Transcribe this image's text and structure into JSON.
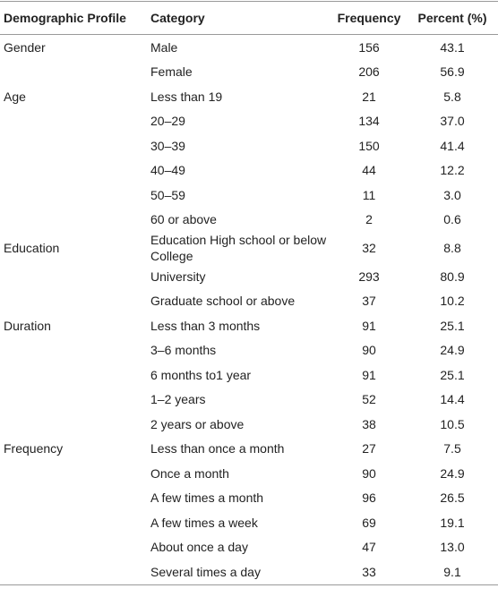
{
  "table": {
    "header": [
      "Demographic Profile",
      "Category",
      "Frequency",
      "Percent (%)"
    ],
    "groups": [
      {
        "profile": "Gender",
        "rows": [
          [
            "Male",
            "156",
            "43.1"
          ],
          [
            "Female",
            "206",
            "56.9"
          ]
        ]
      },
      {
        "profile": "Age",
        "rows": [
          [
            "Less than 19",
            "21",
            "5.8"
          ],
          [
            "20–29",
            "134",
            "37.0"
          ],
          [
            "30–39",
            "150",
            "41.4"
          ],
          [
            "40–49",
            "44",
            "12.2"
          ],
          [
            "50–59",
            "11",
            "3.0"
          ],
          [
            "60 or above",
            "2",
            "0.6"
          ]
        ]
      },
      {
        "profile": "Education",
        "rows": [
          [
            "Education High school or below College",
            "32",
            "8.8"
          ],
          [
            "University",
            "293",
            "80.9"
          ],
          [
            "Graduate school or above",
            "37",
            "10.2"
          ]
        ]
      },
      {
        "profile": "Duration",
        "rows": [
          [
            "Less than 3 months",
            "91",
            "25.1"
          ],
          [
            "3–6 months",
            "90",
            "24.9"
          ],
          [
            "6 months to1 year",
            "91",
            "25.1"
          ],
          [
            "1–2 years",
            "52",
            "14.4"
          ],
          [
            "2 years or above",
            "38",
            "10.5"
          ]
        ]
      },
      {
        "profile": "Frequency",
        "rows": [
          [
            "Less than once a month",
            "27",
            "7.5"
          ],
          [
            "Once a month",
            "90",
            "24.9"
          ],
          [
            "A few times a month",
            "96",
            "26.5"
          ],
          [
            "A few times a week",
            "69",
            "19.1"
          ],
          [
            "About once a day",
            "47",
            "13.0"
          ],
          [
            "Several times a day",
            "33",
            "9.1"
          ]
        ]
      }
    ]
  }
}
